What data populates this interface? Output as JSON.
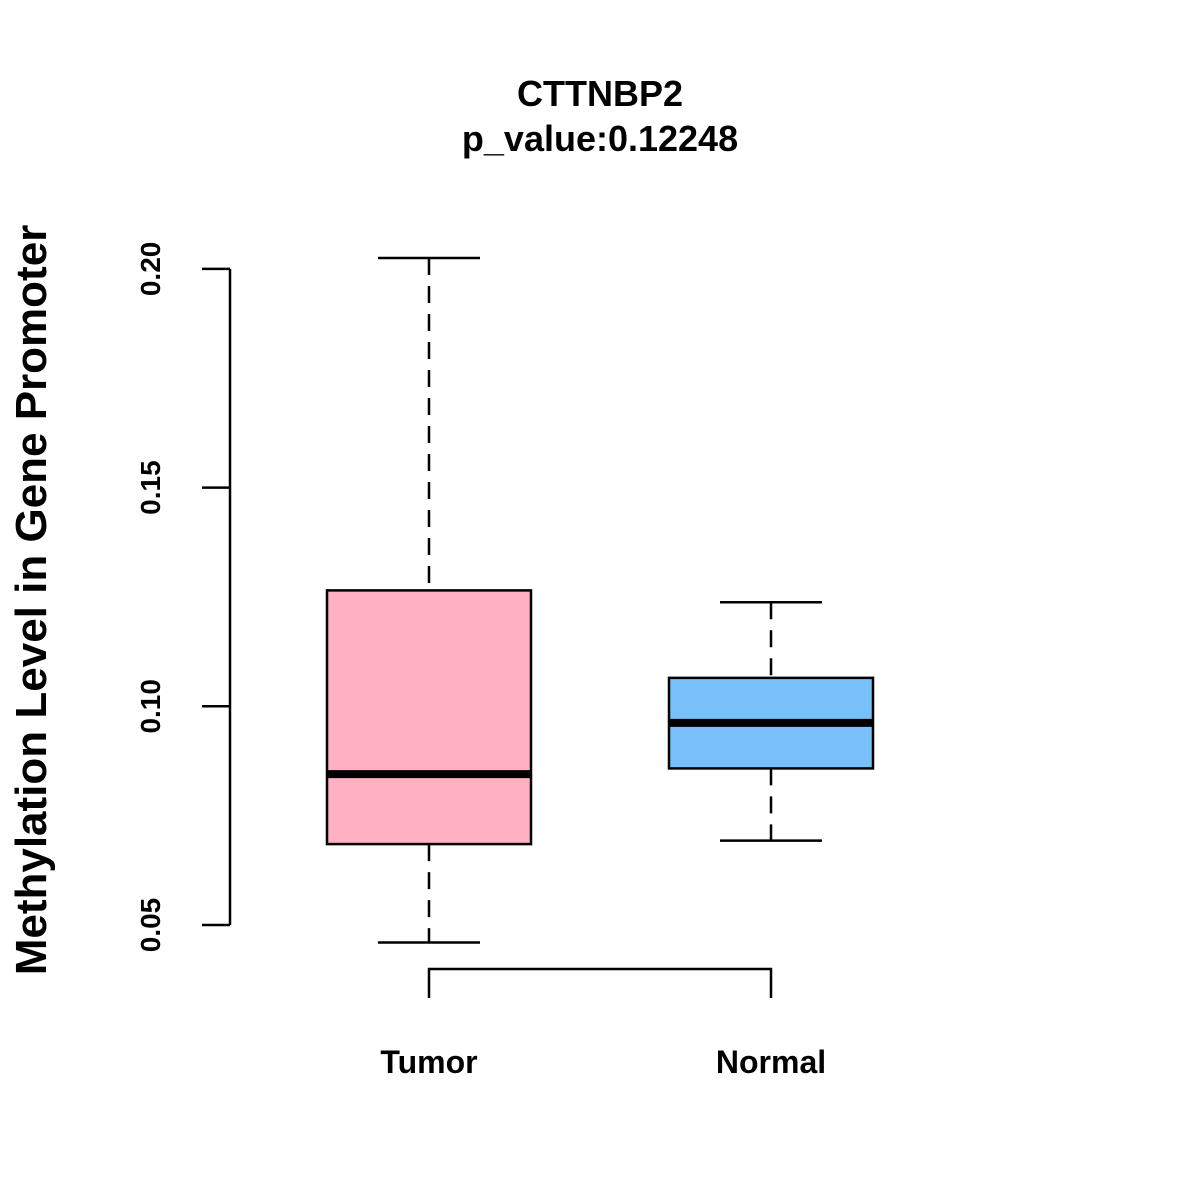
{
  "chart_data": {
    "type": "box",
    "title": "CTTNBP2",
    "subtitle": "p_value:0.12248",
    "ylabel": "Methylation Level in Gene Promoter",
    "xlabel": "",
    "ylim": [
      0.05,
      0.2
    ],
    "yticks": [
      "0.05",
      "0.10",
      "0.15",
      "0.20"
    ],
    "ytick_values": [
      0.05,
      0.1,
      0.15,
      0.2
    ],
    "grid": false,
    "categories": [
      "Tumor",
      "Normal"
    ],
    "boxes": [
      {
        "category": "Tumor",
        "color": "#FFB0C2",
        "whisker_low": 0.046,
        "q1": 0.0685,
        "median": 0.0845,
        "q3": 0.1265,
        "whisker_high": 0.2025
      },
      {
        "category": "Normal",
        "color": "#77C1F8",
        "whisker_low": 0.0693,
        "q1": 0.0858,
        "median": 0.0962,
        "q3": 0.1065,
        "whisker_high": 0.1238
      }
    ],
    "comparison_bracket": [
      "Tumor",
      "Normal"
    ]
  }
}
